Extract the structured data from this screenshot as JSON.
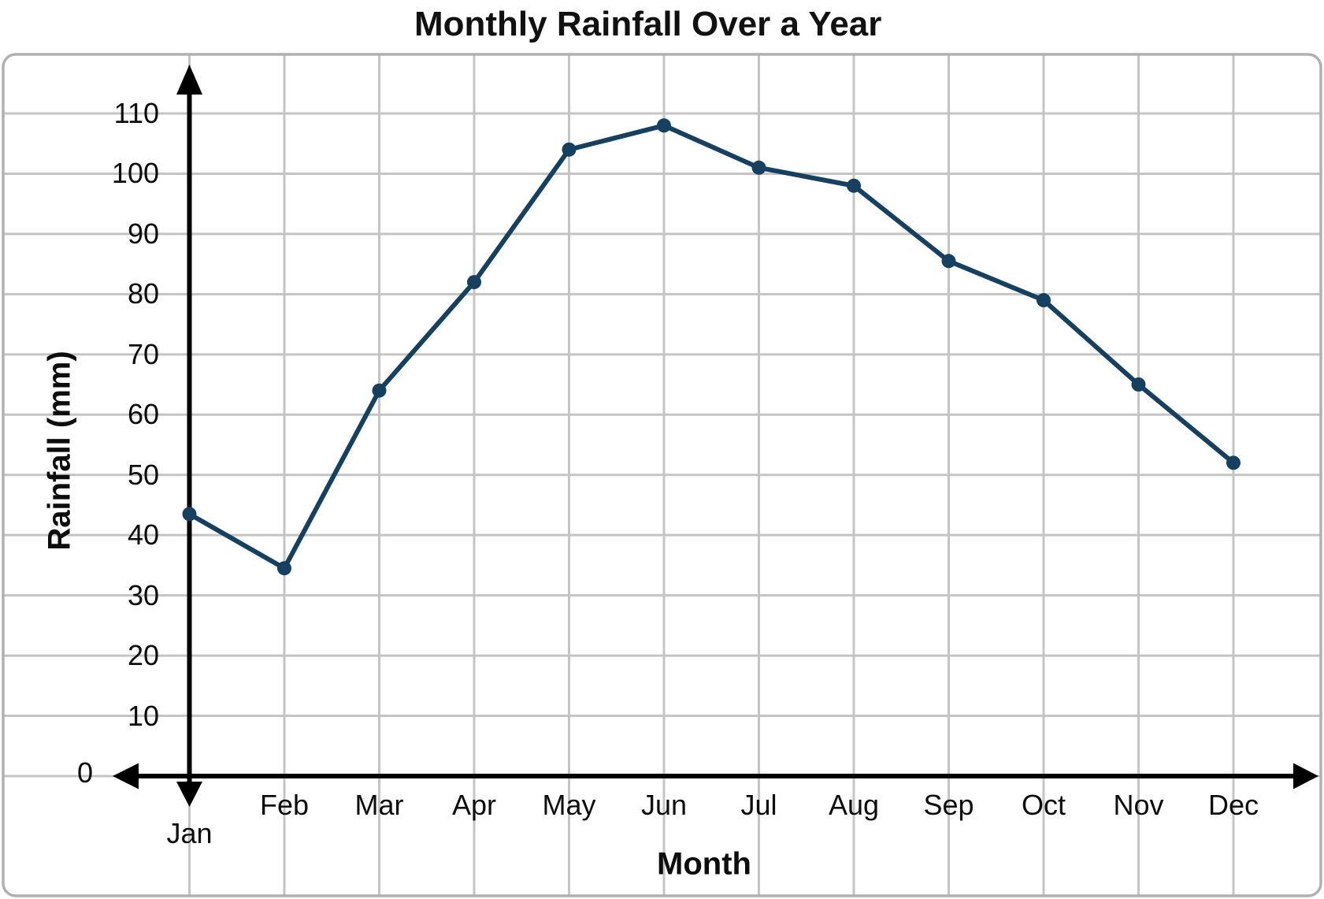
{
  "title": "Monthly Rainfall Over a Year",
  "chart_data": {
    "type": "line",
    "title": "Monthly Rainfall Over a Year",
    "xlabel": "Month",
    "ylabel": "Rainfall (mm)",
    "categories": [
      "Jan",
      "Feb",
      "Mar",
      "Apr",
      "May",
      "Jun",
      "Jul",
      "Aug",
      "Sep",
      "Oct",
      "Nov",
      "Dec"
    ],
    "values": [
      43.5,
      34.5,
      64,
      82,
      104,
      108,
      101,
      98,
      85.5,
      79,
      65,
      52
    ],
    "y_ticks": [
      0,
      10,
      20,
      30,
      40,
      50,
      60,
      70,
      80,
      90,
      100,
      110
    ],
    "ylim": [
      0,
      115
    ],
    "grid": "on",
    "legend": "none",
    "colors": {
      "line": "#16405f",
      "point": "#16405f",
      "grid": "#c4c4c4",
      "frame": "#b0b0b0",
      "axis": "#000000",
      "text": "#0d0d0d"
    }
  }
}
